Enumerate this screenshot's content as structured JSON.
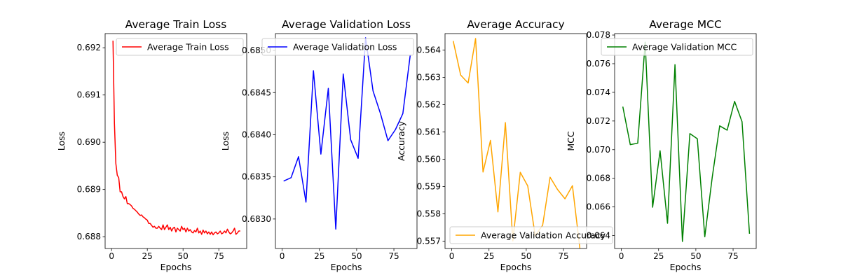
{
  "chart_data": [
    {
      "type": "line",
      "title": "Average Train Loss",
      "xlabel": "Epochs",
      "ylabel": "Loss",
      "xlim": [
        -4.5,
        94.5
      ],
      "ylim": [
        0.68775,
        0.6923
      ],
      "xticks": [
        0,
        25,
        50,
        75
      ],
      "yticks": [
        0.688,
        0.689,
        0.69,
        0.691,
        0.692
      ],
      "ytick_labels": [
        "0.688",
        "0.689",
        "0.690",
        "0.691",
        "0.692"
      ],
      "grid": false,
      "legend_position": "upper-right",
      "series": [
        {
          "name": "Average Train Loss",
          "color": "#ff0000",
          "x": [
            1,
            2,
            3,
            4,
            5,
            6,
            7,
            8,
            9,
            10,
            11,
            12,
            13,
            14,
            15,
            16,
            17,
            18,
            19,
            20,
            21,
            22,
            23,
            24,
            25,
            26,
            27,
            28,
            29,
            30,
            31,
            32,
            33,
            34,
            35,
            36,
            37,
            38,
            39,
            40,
            41,
            42,
            43,
            44,
            45,
            46,
            47,
            48,
            49,
            50,
            51,
            52,
            53,
            54,
            55,
            56,
            57,
            58,
            59,
            60,
            61,
            62,
            63,
            64,
            65,
            66,
            67,
            68,
            69,
            70,
            71,
            72,
            73,
            74,
            75,
            76,
            77,
            78,
            79,
            80,
            81,
            82,
            83,
            84,
            85,
            86,
            87,
            88,
            89,
            90
          ],
          "y": [
            0.69215,
            0.6904,
            0.68955,
            0.6893,
            0.68925,
            0.68895,
            0.68895,
            0.68885,
            0.6888,
            0.68885,
            0.6887,
            0.6887,
            0.68868,
            0.68865,
            0.6886,
            0.68858,
            0.68855,
            0.68852,
            0.68848,
            0.68845,
            0.68846,
            0.68842,
            0.6884,
            0.68837,
            0.68835,
            0.68828,
            0.68828,
            0.68824,
            0.6882,
            0.68822,
            0.68818,
            0.68818,
            0.68822,
            0.68818,
            0.68815,
            0.68825,
            0.68815,
            0.6882,
            0.68825,
            0.68815,
            0.6882,
            0.68812,
            0.68818,
            0.6882,
            0.6881,
            0.68818,
            0.68815,
            0.68812,
            0.68822,
            0.68815,
            0.68818,
            0.6881,
            0.68818,
            0.68812,
            0.68815,
            0.6881,
            0.68808,
            0.68813,
            0.6881,
            0.68818,
            0.68808,
            0.68812,
            0.68805,
            0.68814,
            0.68808,
            0.68812,
            0.68806,
            0.6881,
            0.68805,
            0.6881,
            0.68804,
            0.68808,
            0.6881,
            0.68806,
            0.68808,
            0.68812,
            0.68806,
            0.68808,
            0.68812,
            0.68808,
            0.68816,
            0.6881,
            0.68806,
            0.68808,
            0.68812,
            0.68818,
            0.68805,
            0.68808,
            0.68812,
            0.68812
          ]
        }
      ]
    },
    {
      "type": "line",
      "title": "Average Validation Loss",
      "xlabel": "Epochs",
      "ylabel": "Loss",
      "xlim": [
        -4.5,
        90.5
      ],
      "ylim": [
        0.68265,
        0.6852
      ],
      "xticks": [
        0,
        25,
        50,
        75
      ],
      "yticks": [
        0.683,
        0.6835,
        0.684,
        0.6845,
        0.685
      ],
      "ytick_labels": [
        "0.6830",
        "0.6835",
        "0.6840",
        "0.6845",
        "0.6850"
      ],
      "grid": false,
      "legend_position": "upper-right",
      "series": [
        {
          "name": "Average Validation Loss",
          "color": "#0000ff",
          "x": [
            1,
            6,
            11,
            16,
            21,
            26,
            31,
            36,
            41,
            46,
            51,
            56,
            61,
            66,
            71,
            76,
            81,
            86
          ],
          "y": [
            0.68345,
            0.68349,
            0.68374,
            0.6832,
            0.68476,
            0.68377,
            0.68455,
            0.68288,
            0.68472,
            0.68394,
            0.68372,
            0.68515,
            0.68452,
            0.68425,
            0.68393,
            0.68406,
            0.68425,
            0.68495
          ]
        }
      ]
    },
    {
      "type": "line",
      "title": "Average Accuracy",
      "xlabel": "Epochs",
      "ylabel": "Accuracy",
      "xlim": [
        -4.5,
        90.5
      ],
      "ylim": [
        0.55673,
        0.5646
      ],
      "xticks": [
        0,
        25,
        50,
        75
      ],
      "yticks": [
        0.557,
        0.558,
        0.559,
        0.56,
        0.561,
        0.562,
        0.563,
        0.564
      ],
      "ytick_labels": [
        "0.557",
        "0.558",
        "0.559",
        "0.560",
        "0.561",
        "0.562",
        "0.563",
        "0.564"
      ],
      "grid": false,
      "legend_position": "lower-left",
      "series": [
        {
          "name": "Average Validation Accuracy",
          "color": "#ffa500",
          "x": [
            1,
            6,
            11,
            16,
            21,
            26,
            31,
            36,
            41,
            46,
            51,
            56,
            61,
            66,
            71,
            76,
            81,
            86
          ],
          "y": [
            0.56433,
            0.56308,
            0.56279,
            0.56442,
            0.55953,
            0.56069,
            0.55807,
            0.56134,
            0.55701,
            0.55952,
            0.55902,
            0.5572,
            0.55758,
            0.55934,
            0.55889,
            0.55855,
            0.55903,
            0.55673
          ]
        }
      ]
    },
    {
      "type": "line",
      "title": "Average MCC",
      "xlabel": "Epochs",
      "ylabel": "MCC",
      "xlim": [
        -4.5,
        90.5
      ],
      "ylim": [
        0.0631,
        0.0781
      ],
      "xticks": [
        0,
        25,
        50,
        75
      ],
      "yticks": [
        0.064,
        0.066,
        0.068,
        0.07,
        0.072,
        0.074,
        0.076,
        0.078
      ],
      "ytick_labels": [
        "0.064",
        "0.066",
        "0.068",
        "0.070",
        "0.072",
        "0.074",
        "0.076",
        "0.078"
      ],
      "grid": false,
      "legend_position": "upper-right",
      "series": [
        {
          "name": "Average Validation MCC",
          "color": "#008000",
          "x": [
            1,
            6,
            11,
            16,
            21,
            26,
            31,
            36,
            41,
            46,
            51,
            56,
            61,
            66,
            71,
            76,
            81,
            86
          ],
          "y": [
            0.073,
            0.07035,
            0.07045,
            0.0775,
            0.06598,
            0.06992,
            0.06486,
            0.07593,
            0.06359,
            0.07112,
            0.07076,
            0.06392,
            0.06807,
            0.07166,
            0.07136,
            0.07337,
            0.07195,
            0.06413
          ]
        }
      ]
    }
  ]
}
